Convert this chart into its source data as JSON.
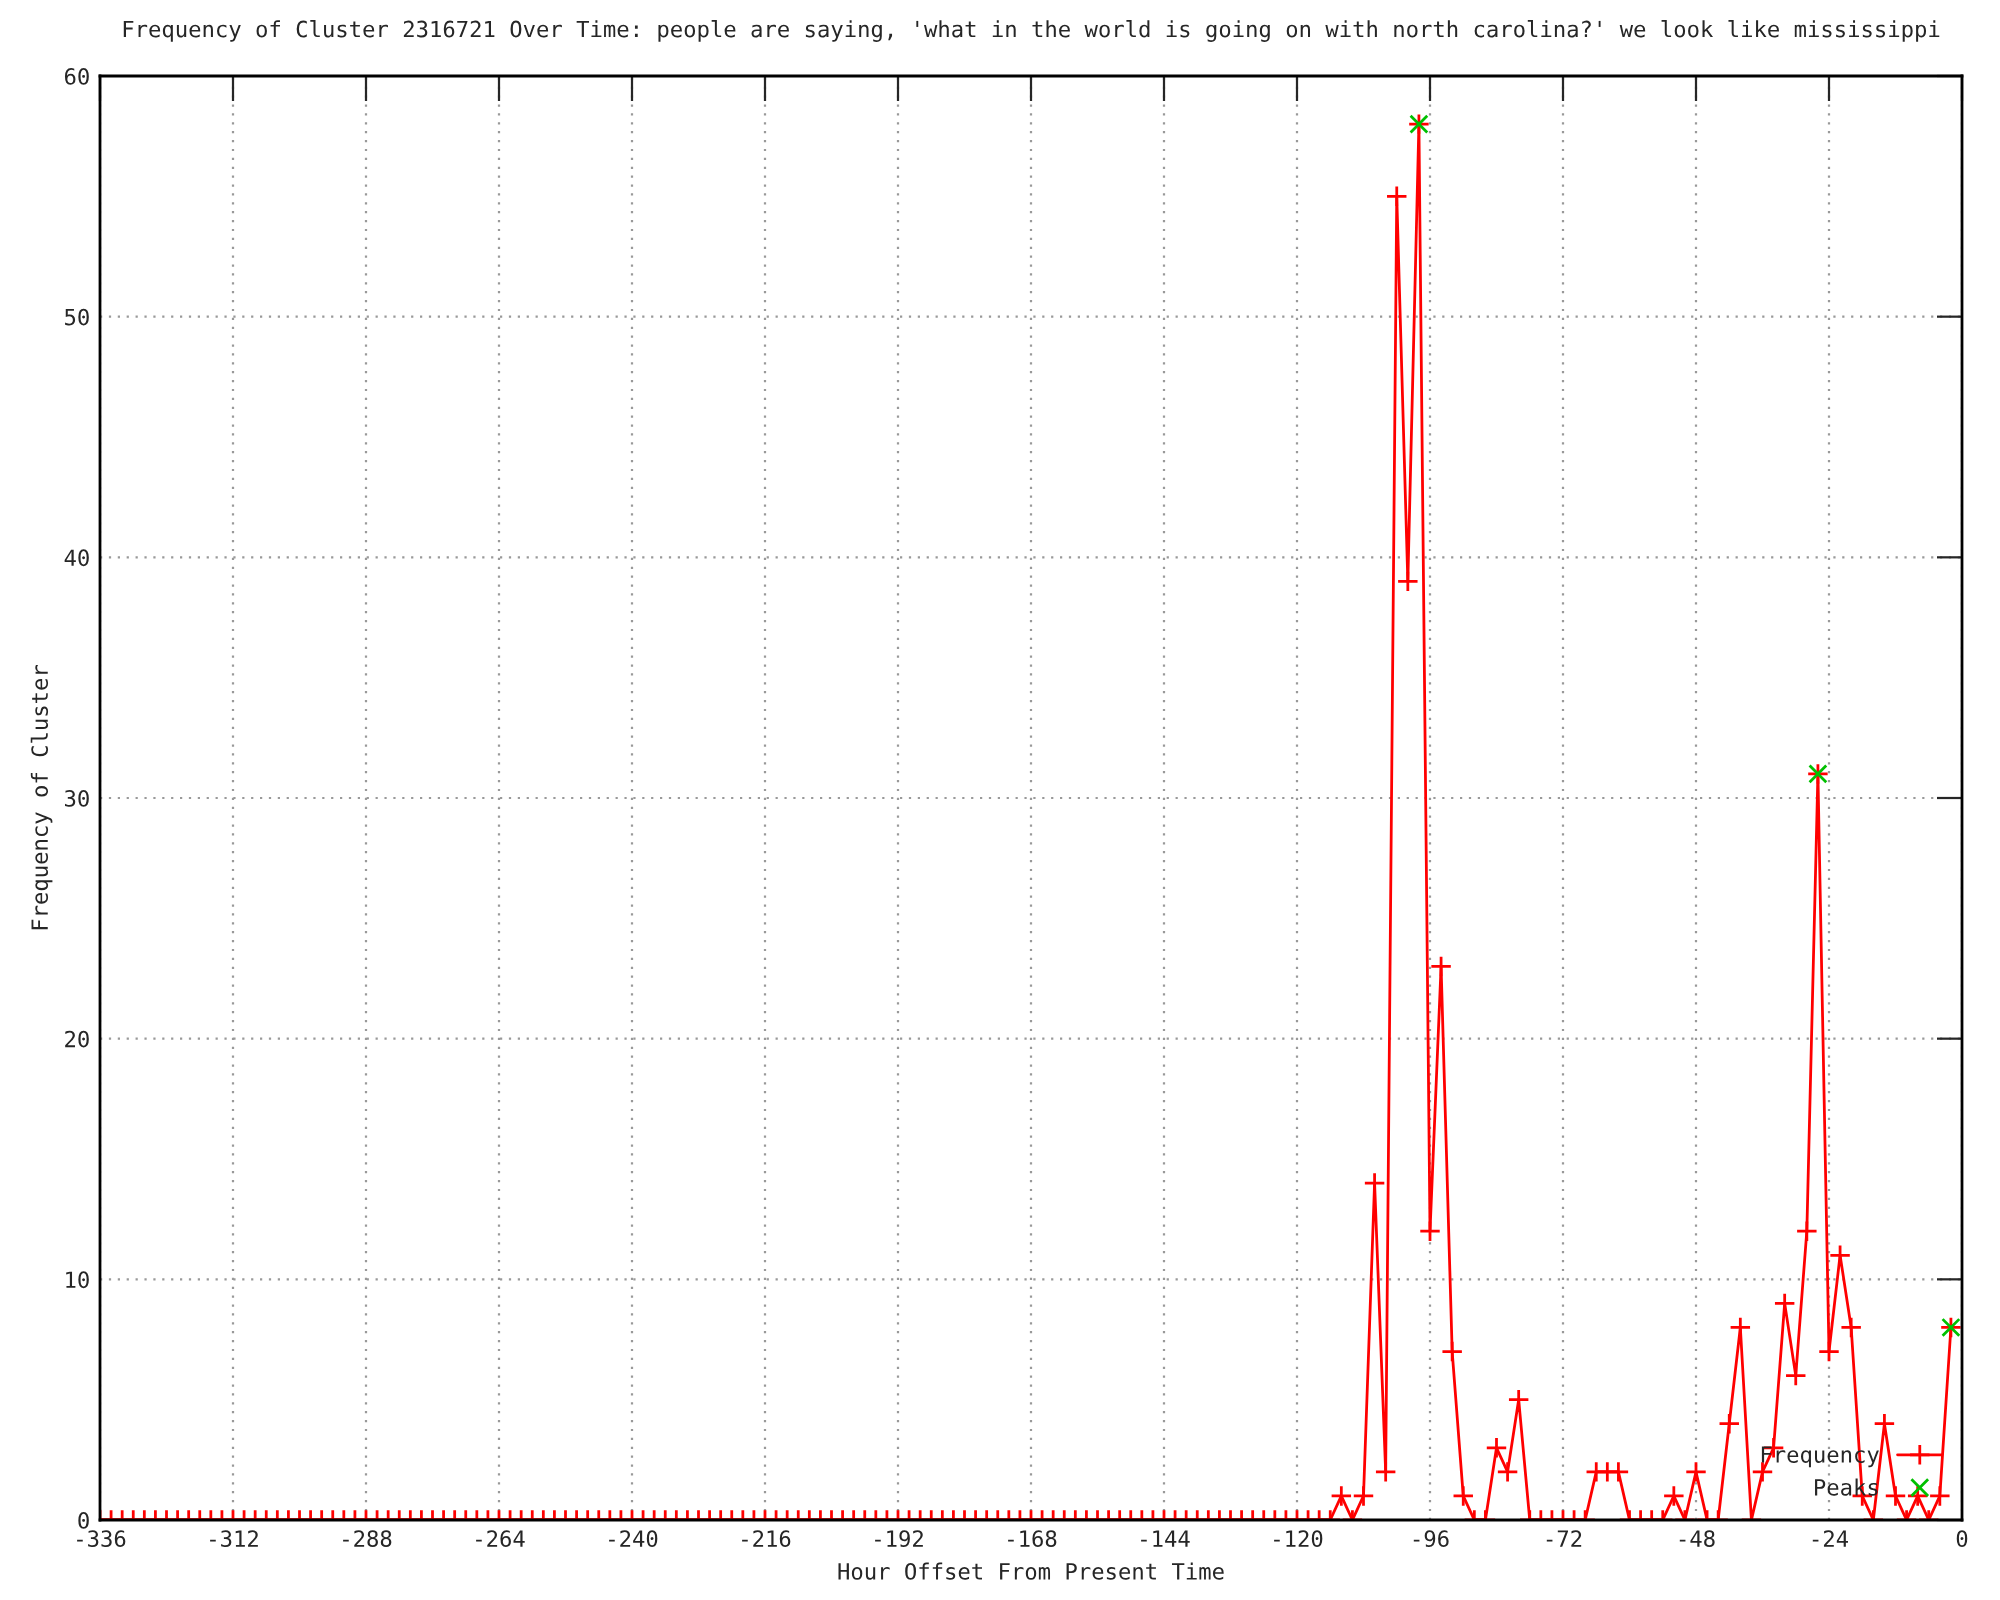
{
  "chart_data": {
    "type": "line",
    "title": "Frequency of Cluster 2316721 Over Time: people are saying, 'what in the world is going on with north carolina?' we look like mississippi",
    "xlabel": "Hour Offset From Present Time",
    "ylabel": "Frequency of Cluster",
    "xlim": [
      -336,
      0
    ],
    "xticks": [
      -336,
      -312,
      -288,
      -264,
      -240,
      -216,
      -192,
      -168,
      -144,
      -120,
      -96,
      -72,
      -48,
      -24,
      0
    ],
    "ylim": [
      0,
      60
    ],
    "yticks": [
      0,
      10,
      20,
      30,
      40,
      50,
      60
    ],
    "grid": true,
    "legend": "bottom right",
    "series": [
      {
        "name": "Frequency",
        "color": "#ff0000",
        "marker": "cross",
        "x": [
          -336,
          -334,
          -332,
          -330,
          -328,
          -326,
          -324,
          -322,
          -320,
          -318,
          -316,
          -314,
          -312,
          -310,
          -308,
          -306,
          -304,
          -302,
          -300,
          -298,
          -296,
          -294,
          -292,
          -290,
          -288,
          -286,
          -284,
          -282,
          -280,
          -278,
          -276,
          -274,
          -272,
          -270,
          -268,
          -266,
          -264,
          -262,
          -260,
          -258,
          -256,
          -254,
          -252,
          -250,
          -248,
          -246,
          -244,
          -242,
          -240,
          -238,
          -236,
          -234,
          -232,
          -230,
          -228,
          -226,
          -224,
          -222,
          -220,
          -218,
          -216,
          -214,
          -212,
          -210,
          -208,
          -206,
          -204,
          -202,
          -200,
          -198,
          -196,
          -194,
          -192,
          -190,
          -188,
          -186,
          -184,
          -182,
          -180,
          -178,
          -176,
          -174,
          -172,
          -170,
          -168,
          -166,
          -164,
          -162,
          -160,
          -158,
          -156,
          -154,
          -152,
          -150,
          -148,
          -146,
          -144,
          -142,
          -140,
          -138,
          -136,
          -134,
          -132,
          -130,
          -128,
          -126,
          -124,
          -122,
          -120,
          -118,
          -116,
          -114,
          -112,
          -110,
          -108,
          -106,
          -104,
          -102,
          -100,
          -98,
          -96,
          -94,
          -92,
          -90,
          -88,
          -86,
          -84,
          -82,
          -80,
          -78,
          -76,
          -74,
          -72,
          -70,
          -68,
          -66,
          -64,
          -62,
          -60,
          -58,
          -56,
          -54,
          -52,
          -50,
          -48,
          -46,
          -44,
          -42,
          -40,
          -38,
          -36,
          -34,
          -32,
          -30,
          -28,
          -26,
          -24,
          -22,
          -20,
          -18,
          -16,
          -14,
          -12,
          -10,
          -8,
          -6,
          -4,
          -2
        ],
        "values": [
          0,
          0,
          0,
          0,
          0,
          0,
          0,
          0,
          0,
          0,
          0,
          0,
          0,
          0,
          0,
          0,
          0,
          0,
          0,
          0,
          0,
          0,
          0,
          0,
          0,
          0,
          0,
          0,
          0,
          0,
          0,
          0,
          0,
          0,
          0,
          0,
          0,
          0,
          0,
          0,
          0,
          0,
          0,
          0,
          0,
          0,
          0,
          0,
          0,
          0,
          0,
          0,
          0,
          0,
          0,
          0,
          0,
          0,
          0,
          0,
          0,
          0,
          0,
          0,
          0,
          0,
          0,
          0,
          0,
          0,
          0,
          0,
          0,
          0,
          0,
          0,
          0,
          0,
          0,
          0,
          0,
          0,
          0,
          0,
          0,
          0,
          0,
          0,
          0,
          0,
          0,
          0,
          0,
          0,
          0,
          0,
          0,
          0,
          0,
          0,
          0,
          0,
          0,
          0,
          0,
          0,
          0,
          0,
          0,
          0,
          0,
          0,
          1,
          0,
          1,
          14,
          2,
          55,
          39,
          58,
          12,
          23,
          7,
          1,
          0,
          0,
          3,
          2,
          5,
          0,
          0,
          0,
          0,
          0,
          0,
          2,
          2,
          2,
          0,
          0,
          0,
          0,
          1,
          0,
          2,
          0,
          0,
          4,
          8,
          0,
          2,
          3,
          9,
          6,
          12,
          31,
          7,
          11,
          8,
          1,
          0,
          4,
          1,
          0,
          1,
          0,
          1,
          8
        ]
      },
      {
        "name": "Peaks",
        "type": "scatter",
        "color": "#00c000",
        "marker": "cross",
        "x": [
          -98,
          -26,
          -2
        ],
        "values": [
          58,
          31,
          8
        ]
      }
    ]
  }
}
